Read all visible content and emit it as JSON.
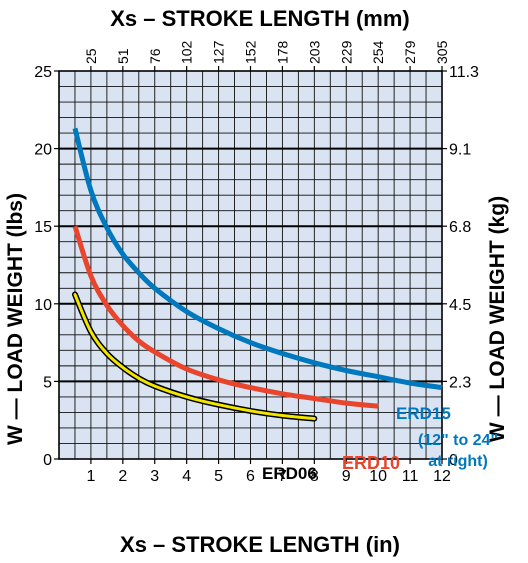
{
  "chart_data": {
    "type": "line",
    "title_top": "Xs – STROKE LENGTH (mm)",
    "xlabel": "Xs – STROKE LENGTH (in)",
    "ylabel_left": "W — LOAD WEIGHT (lbs)",
    "ylabel_right": "W — LOAD WEIGHT (kg)",
    "xlim": [
      0,
      12
    ],
    "ylim": [
      0,
      25
    ],
    "x_ticks": [
      "1",
      "2",
      "3",
      "4",
      "5",
      "6",
      "7",
      "8",
      "9",
      "10",
      "11",
      "12"
    ],
    "y_ticks": [
      "0",
      "5",
      "10",
      "15",
      "20",
      "25"
    ],
    "top_ticks": [
      "25",
      "51",
      "76",
      "102",
      "127",
      "152",
      "178",
      "203",
      "229",
      "254",
      "279",
      "305"
    ],
    "right_ticks": [
      "0",
      "2.3",
      "4.5",
      "6.8",
      "9.1",
      "11.3"
    ],
    "grid": true,
    "colors": {
      "plot_bg": "#d9e3f1",
      "ERD15": "#0078be",
      "ERD10": "#e8452c",
      "ERD06": "#f2e600"
    },
    "series": [
      {
        "name": "ERD15",
        "x": [
          0.5,
          1,
          1.5,
          2,
          2.5,
          3,
          4,
          5,
          6,
          7,
          8,
          9,
          10,
          11,
          12
        ],
        "y": [
          21.3,
          17.3,
          14.9,
          13.2,
          12.0,
          11.0,
          9.5,
          8.4,
          7.5,
          6.8,
          6.2,
          5.7,
          5.3,
          4.9,
          4.6
        ]
      },
      {
        "name": "ERD10",
        "x": [
          0.5,
          1,
          1.5,
          2,
          2.5,
          3,
          4,
          5,
          6,
          7,
          8,
          9,
          10
        ],
        "y": [
          15.0,
          11.8,
          9.9,
          8.6,
          7.6,
          6.9,
          5.8,
          5.1,
          4.6,
          4.2,
          3.9,
          3.6,
          3.4
        ]
      },
      {
        "name": "ERD06",
        "x": [
          0.5,
          1,
          1.5,
          2,
          2.5,
          3,
          4,
          5,
          6,
          7,
          8
        ],
        "y": [
          10.6,
          8.2,
          6.8,
          5.9,
          5.2,
          4.7,
          4.0,
          3.5,
          3.1,
          2.8,
          2.6
        ]
      }
    ],
    "annotations": {
      "erd15_label": "ERD15",
      "erd10_label": "ERD10",
      "erd06_label": "ERD06",
      "note_line1": "(12\" to 24\"",
      "note_line2": "at right)"
    }
  }
}
